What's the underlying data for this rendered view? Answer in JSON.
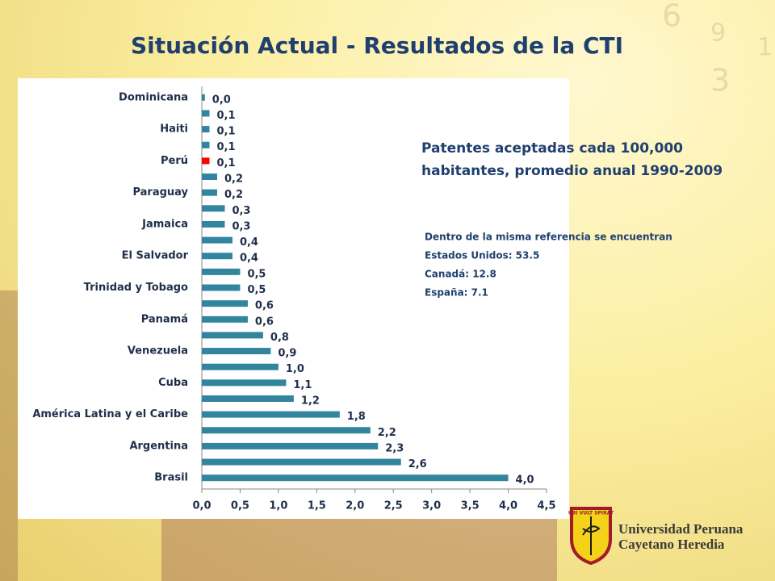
{
  "title": "Situación Actual - Resultados de la CTI",
  "chart_data": {
    "type": "bar",
    "orientation": "horizontal",
    "categories": [
      "Dominicana",
      null,
      "Haiti",
      null,
      "Perú",
      null,
      "Paraguay",
      null,
      "Jamaica",
      null,
      "El Salvador",
      null,
      "Trinidad y Tobago",
      null,
      "Panamá",
      null,
      "Venezuela",
      null,
      "Cuba",
      null,
      "América Latina y el Caribe",
      null,
      "Argentina",
      null,
      "Brasil"
    ],
    "values": [
      0.04,
      0.1,
      0.1,
      0.1,
      0.1,
      0.2,
      0.2,
      0.3,
      0.3,
      0.4,
      0.4,
      0.5,
      0.5,
      0.6,
      0.6,
      0.8,
      0.9,
      1.0,
      1.1,
      1.2,
      1.8,
      2.2,
      2.3,
      2.6,
      4.0
    ],
    "value_labels": [
      "0,0",
      "0,1",
      "0,1",
      "0,1",
      "0,1",
      "0,2",
      "0,2",
      "0,3",
      "0,3",
      "0,4",
      "0,4",
      "0,5",
      "0,5",
      "0,6",
      "0,6",
      "0,8",
      "0,9",
      "1,0",
      "1,1",
      "1,2",
      "1,8",
      "2,2",
      "2,3",
      "2,6",
      "4,0"
    ],
    "color": "#31859c",
    "colors": [
      "#31859c",
      "#31859c",
      "#31859c",
      "#31859c",
      "#ff0000",
      "#31859c",
      "#31859c",
      "#31859c",
      "#31859c",
      "#31859c",
      "#31859c",
      "#31859c",
      "#31859c",
      "#31859c",
      "#31859c",
      "#31859c",
      "#31859c",
      "#31859c",
      "#31859c",
      "#31859c",
      "#31859c",
      "#31859c",
      "#31859c",
      "#31859c",
      "#31859c"
    ],
    "xlim": [
      0,
      4.5
    ],
    "xticks": [
      {
        "value": 0,
        "label": "0,0"
      },
      {
        "value": 0.5,
        "label": "0,5"
      },
      {
        "value": 1,
        "label": "1,0"
      },
      {
        "value": 1.5,
        "label": "1,5"
      },
      {
        "value": 2,
        "label": "2,0"
      },
      {
        "value": 2.5,
        "label": "2,5"
      },
      {
        "value": 3,
        "label": "3,0"
      },
      {
        "value": 3.5,
        "label": "3,5"
      },
      {
        "value": 4,
        "label": "4,0"
      },
      {
        "value": 4.5,
        "label": "4,5"
      }
    ],
    "annotation": [
      "Patentes aceptadas cada 100,000",
      "habitantes, promedio anual 1990-2009"
    ],
    "notes": [
      "Dentro de la misma referencia se encuentran",
      "Estados Unidos: 53.5",
      "Canadá: 12.8",
      "España: 7.1"
    ]
  },
  "logo": {
    "motto": "UBI VULT SPIRAT",
    "name": [
      "Universidad Peruana",
      "Cayetano Heredia"
    ]
  }
}
